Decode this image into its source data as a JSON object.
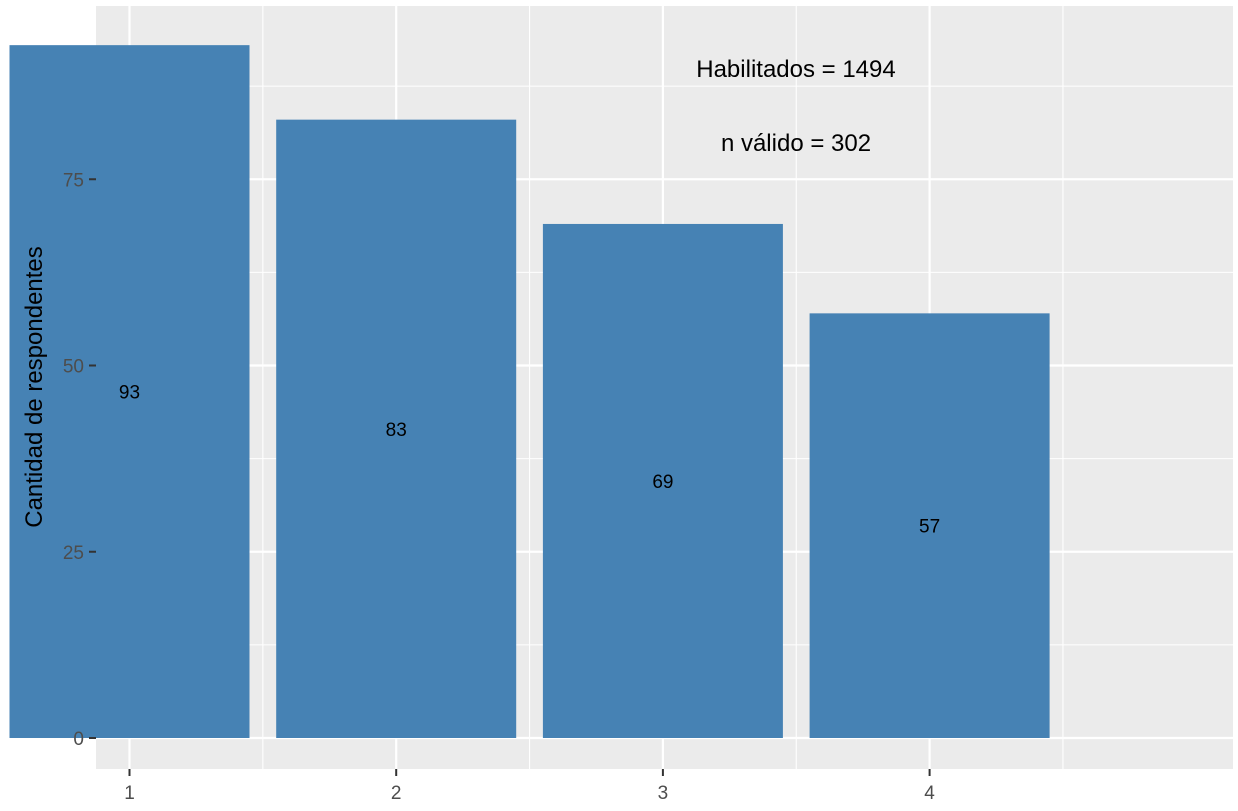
{
  "chart_data": {
    "type": "bar",
    "categories": [
      "1",
      "2",
      "3",
      "4"
    ],
    "values": [
      93,
      83,
      69,
      57
    ],
    "data_labels": [
      "93",
      "83",
      "69",
      "57"
    ],
    "ylabel": "Cantidad de respondentes",
    "xlabel": "",
    "ylim": [
      0,
      97.65
    ],
    "yticks": [
      0,
      25,
      50,
      75
    ],
    "ytick_labels": [
      "0",
      "25",
      "50",
      "75"
    ],
    "grid": true,
    "colors": {
      "bar": "#4682B4",
      "panel": "#EBEBEB",
      "grid": "#FFFFFF"
    },
    "annotations": [
      "Habilitados =  1494",
      "n válido = 302"
    ]
  }
}
